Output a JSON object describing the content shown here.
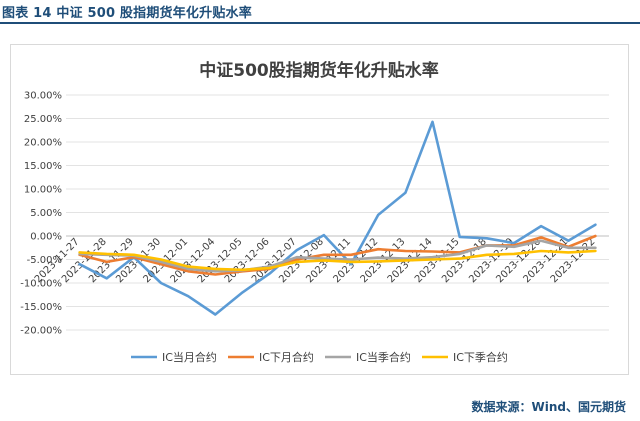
{
  "figure": {
    "caption": "图表 14  中证 500 股指期货年化升贴水率",
    "source": "数据来源：Wind、国元期货"
  },
  "chart_data": {
    "type": "line",
    "title": "中证500股指期货年化升贴水率",
    "xlabel": "",
    "ylabel": "",
    "ylim": [
      -20,
      30
    ],
    "yticks": [
      "30.00%",
      "25.00%",
      "20.00%",
      "15.00%",
      "10.00%",
      "5.00%",
      "0.00%",
      "-5.00%",
      "-10.00%",
      "-15.00%",
      "-20.00%"
    ],
    "ytick_values": [
      30,
      25,
      20,
      15,
      10,
      5,
      0,
      -5,
      -10,
      -15,
      -20
    ],
    "grid": true,
    "legend_position": "bottom",
    "categories": [
      "2023-11-27",
      "2023-11-28",
      "2023-11-29",
      "2023-11-30",
      "2023-12-01",
      "2023-12-04",
      "2023-12-05",
      "2023-12-06",
      "2023-12-07",
      "2023-12-08",
      "2023-12-11",
      "2023-12-12",
      "2023-12-13",
      "2023-12-14",
      "2023-12-15",
      "2023-12-18",
      "2023-12-19",
      "2023-12-20",
      "2023-12-21",
      "2023-12-22"
    ],
    "series": [
      {
        "name": "IC当月合约",
        "color": "#5b9bd5",
        "values": [
          -6.0,
          -9.0,
          -4.5,
          -10.0,
          -12.8,
          -16.7,
          -12.0,
          -8.0,
          -3.0,
          0.2,
          -6.0,
          4.5,
          9.2,
          24.3,
          -0.2,
          -0.5,
          -1.5,
          2.1,
          -1.0,
          2.4
        ]
      },
      {
        "name": "IC下月合约",
        "color": "#ed7d31",
        "values": [
          -4.0,
          -5.5,
          -4.5,
          -6.0,
          -7.5,
          -8.2,
          -7.5,
          -7.0,
          -5.0,
          -4.0,
          -4.0,
          -2.8,
          -3.2,
          -3.3,
          -3.5,
          -2.0,
          -2.0,
          -0.3,
          -2.3,
          0.0
        ]
      },
      {
        "name": "IC当季合约",
        "color": "#a5a5a5",
        "values": [
          -3.8,
          -4.0,
          -4.2,
          -5.5,
          -7.0,
          -7.5,
          -7.3,
          -6.5,
          -4.5,
          -4.8,
          -5.0,
          -4.6,
          -4.8,
          -4.5,
          -3.8,
          -2.0,
          -2.3,
          -1.0,
          -2.5,
          -2.5
        ]
      },
      {
        "name": "IC下季合约",
        "color": "#ffc000",
        "values": [
          -3.5,
          -3.8,
          -4.0,
          -5.0,
          -6.5,
          -7.0,
          -7.2,
          -6.8,
          -5.5,
          -5.2,
          -5.5,
          -5.4,
          -5.2,
          -5.0,
          -4.8,
          -4.0,
          -3.8,
          -3.2,
          -3.5,
          -3.2
        ]
      }
    ]
  }
}
